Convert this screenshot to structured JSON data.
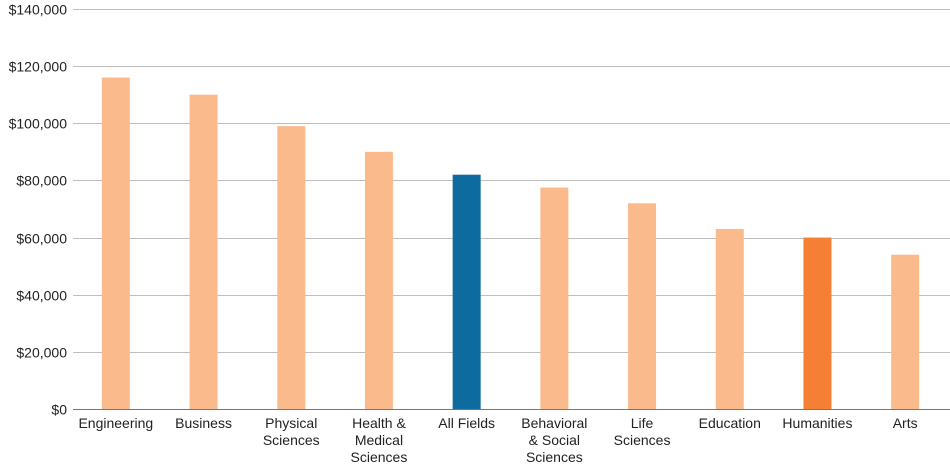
{
  "chart_data": {
    "type": "bar",
    "title": "",
    "xlabel": "",
    "ylabel": "",
    "categories": [
      [
        "Engineering"
      ],
      [
        "Business"
      ],
      [
        "Physical",
        "Sciences"
      ],
      [
        "Health &",
        "Medical",
        "Sciences"
      ],
      [
        "All Fields"
      ],
      [
        "Behavioral",
        "& Social",
        "Sciences"
      ],
      [
        "Life",
        "Sciences"
      ],
      [
        "Education"
      ],
      [
        "Humanities"
      ],
      [
        "Arts"
      ]
    ],
    "values": [
      116000,
      110000,
      99000,
      90000,
      82000,
      77500,
      72000,
      63000,
      60000,
      54000
    ],
    "ylim": [
      0,
      140000
    ],
    "yticks": [
      "$0",
      "$20,000",
      "$40,000",
      "$60,000",
      "$80,000",
      "$100,000",
      "$120,000",
      "$140,000"
    ],
    "grid": true,
    "bar_colors": [
      "#FBBA8C",
      "#FBBA8C",
      "#FBBA8C",
      "#FBBA8C",
      "#0E6BA0",
      "#FBBA8C",
      "#FBBA8C",
      "#FBBA8C",
      "#F47F35",
      "#FBBA8C"
    ]
  }
}
